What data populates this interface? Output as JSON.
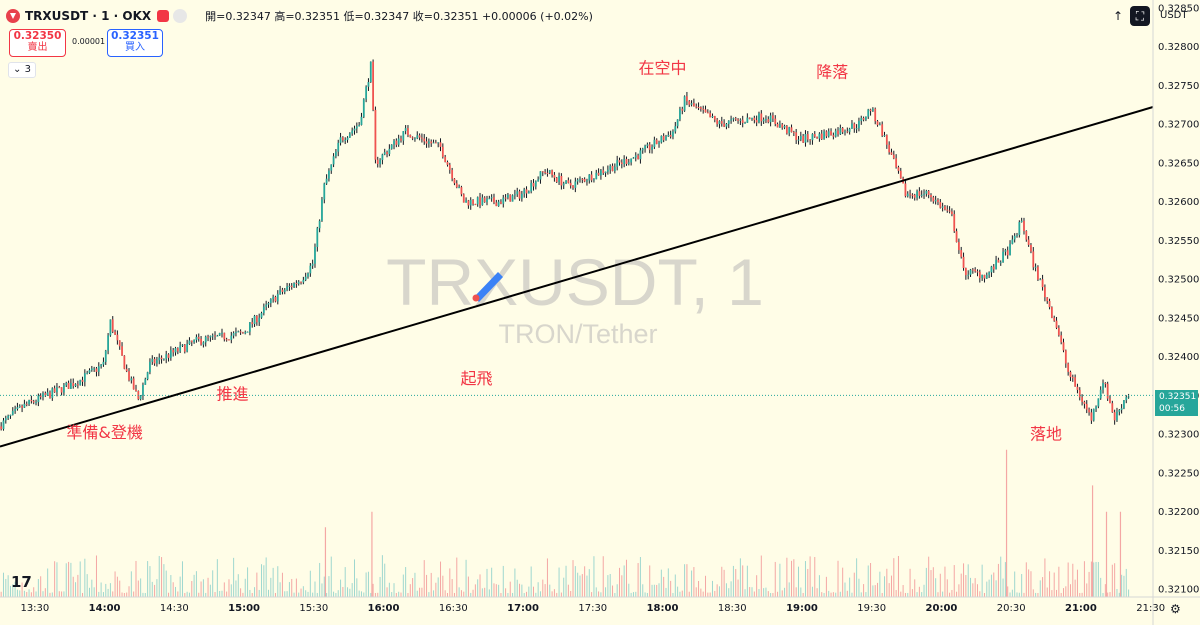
{
  "header": {
    "symbol_line": "TRXUSDT · 1 · OKX",
    "ohlc": "開=0.32347 高=0.32351 低=0.32347 收=0.32351 +0.00006 (+0.02%)",
    "currency": "USDT",
    "up_icon": "arrow-up-icon",
    "fullscreen_icon": "fullscreen-icon"
  },
  "trade": {
    "sell_price": "0.32350",
    "sell_label": "賣出",
    "spread": "0.00001",
    "buy_price": "0.32351",
    "buy_label": "買入"
  },
  "indicator_toggle": "3",
  "watermark": {
    "symbol": "TRXUSDT, 1",
    "name": "TRON/Tether"
  },
  "current_price": {
    "value": "0.32351",
    "countdown": "00:56"
  },
  "colors": {
    "up": "#26a69a",
    "down": "#ef5350",
    "annotation": "#f23645",
    "background": "#fffde7"
  },
  "chart_data": {
    "type": "candlestick",
    "price_axis": [
      "0.32850",
      "0.32800",
      "0.32750",
      "0.32700",
      "0.32650",
      "0.32600",
      "0.32550",
      "0.32500",
      "0.32450",
      "0.32400",
      "0.32350",
      "0.32300",
      "0.32250",
      "0.32200",
      "0.32150",
      "0.32100"
    ],
    "ylim": [
      0.3209,
      0.3286
    ],
    "time_axis": [
      "13:30",
      "14:00",
      "14:30",
      "15:00",
      "15:30",
      "16:00",
      "16:30",
      "17:00",
      "17:30",
      "18:00",
      "18:30",
      "19:00",
      "19:30",
      "20:00",
      "20:30",
      "21:00",
      "21:30"
    ],
    "time_range": [
      "13:15",
      "21:31"
    ],
    "price_path": [
      [
        "13:15",
        0.3231
      ],
      [
        "13:25",
        0.32335
      ],
      [
        "13:50",
        0.3237
      ],
      [
        "14:00",
        0.3239
      ],
      [
        "14:03",
        0.32445
      ],
      [
        "14:10",
        0.3238
      ],
      [
        "14:15",
        0.32345
      ],
      [
        "14:20",
        0.3239
      ],
      [
        "14:40",
        0.3242
      ],
      [
        "15:00",
        0.3243
      ],
      [
        "15:15",
        0.3248
      ],
      [
        "15:25",
        0.325
      ],
      [
        "15:30",
        0.3252
      ],
      [
        "15:35",
        0.3262
      ],
      [
        "15:42",
        0.3268
      ],
      [
        "15:50",
        0.327
      ],
      [
        "15:55",
        0.32775
      ],
      [
        "15:57",
        0.3265
      ],
      [
        "16:10",
        0.3269
      ],
      [
        "16:25",
        0.3267
      ],
      [
        "16:35",
        0.326
      ],
      [
        "16:50",
        0.326
      ],
      [
        "17:00",
        0.3261
      ],
      [
        "17:10",
        0.3264
      ],
      [
        "17:20",
        0.3262
      ],
      [
        "17:35",
        0.3264
      ],
      [
        "17:50",
        0.3266
      ],
      [
        "18:05",
        0.3269
      ],
      [
        "18:10",
        0.3273
      ],
      [
        "18:25",
        0.327
      ],
      [
        "18:45",
        0.3271
      ],
      [
        "19:00",
        0.3268
      ],
      [
        "19:15",
        0.3269
      ],
      [
        "19:25",
        0.327
      ],
      [
        "19:30",
        0.3272
      ],
      [
        "19:35",
        0.3269
      ],
      [
        "19:40",
        0.3265
      ],
      [
        "19:45",
        0.3261
      ],
      [
        "19:55",
        0.3261
      ],
      [
        "20:05",
        0.3258
      ],
      [
        "20:10",
        0.3251
      ],
      [
        "20:20",
        0.32505
      ],
      [
        "20:30",
        0.3254
      ],
      [
        "20:35",
        0.32575
      ],
      [
        "20:40",
        0.3252
      ],
      [
        "20:50",
        0.3244
      ],
      [
        "20:55",
        0.3238
      ],
      [
        "21:05",
        0.3232
      ],
      [
        "21:10",
        0.3237
      ],
      [
        "21:15",
        0.3232
      ],
      [
        "21:20",
        0.3235
      ]
    ],
    "trend_line": [
      [
        "13:15",
        0.32284
      ],
      [
        "21:31",
        0.32722
      ]
    ],
    "volume_spikes": [
      [
        "20:28",
        0.95
      ],
      [
        "21:05",
        0.72
      ],
      [
        "21:11",
        0.55
      ],
      [
        "15:55",
        0.55
      ],
      [
        "15:35",
        0.45
      ],
      [
        "21:17",
        0.55
      ]
    ],
    "annotations": [
      {
        "text": "準備&登機",
        "time": "14:00",
        "price": 0.32295
      },
      {
        "text": "推進",
        "time": "14:55",
        "price": 0.32345
      },
      {
        "text": "起飛",
        "time": "16:40",
        "price": 0.32365
      },
      {
        "text": "在空中",
        "time": "18:00",
        "price": 0.32765
      },
      {
        "text": "降落",
        "time": "19:13",
        "price": 0.3276
      },
      {
        "text": "落地",
        "time": "20:45",
        "price": 0.32293
      }
    ]
  }
}
